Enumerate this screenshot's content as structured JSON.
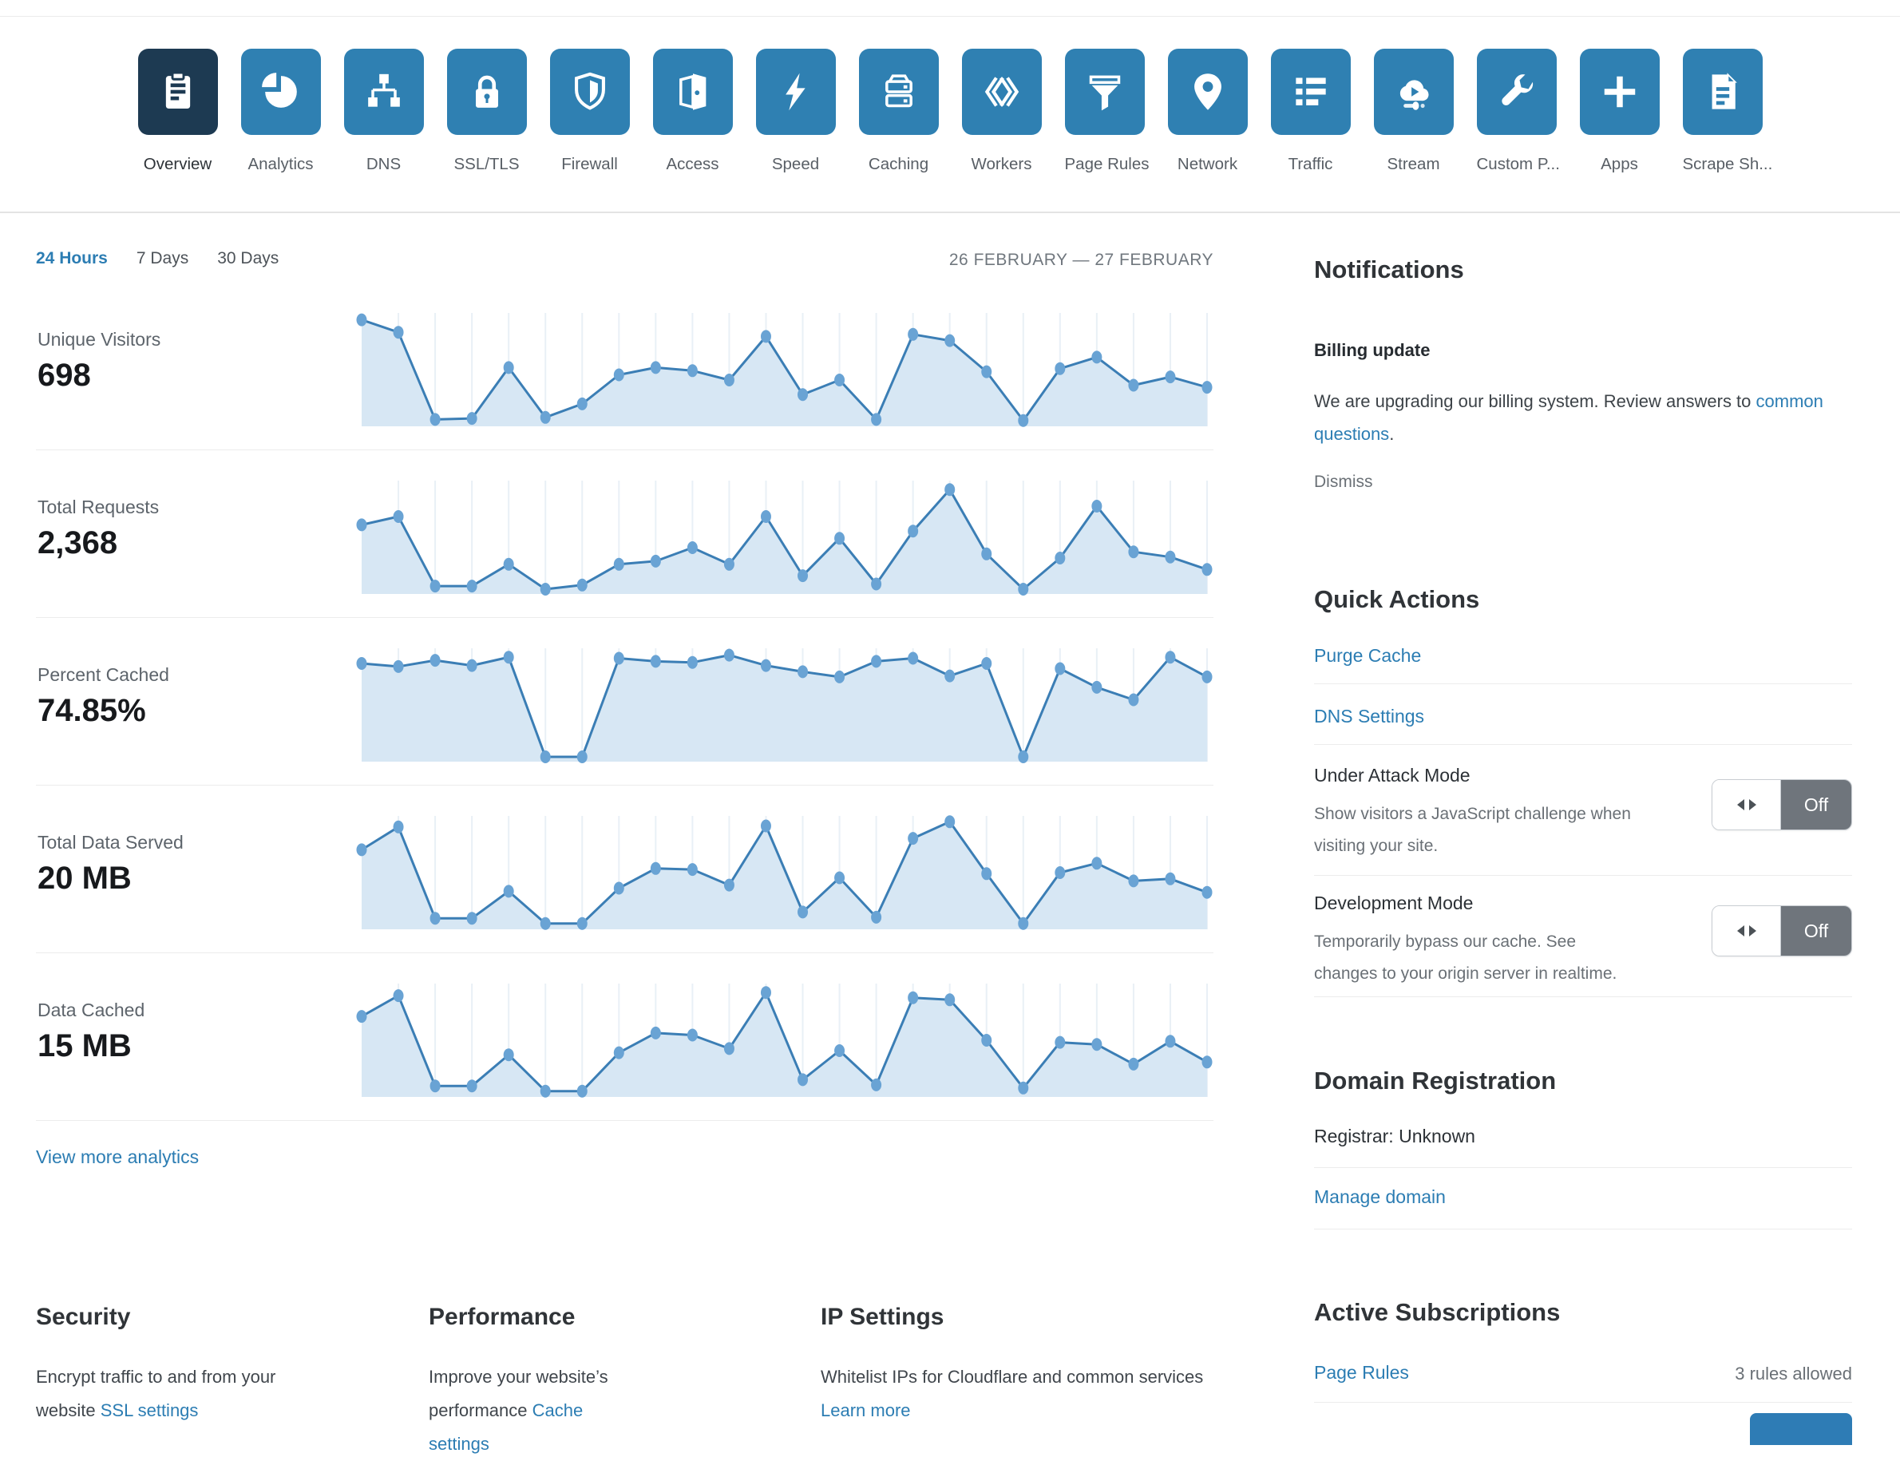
{
  "nav": {
    "items": [
      {
        "label": "Overview",
        "icon": "clipboard-icon",
        "active": true
      },
      {
        "label": "Analytics",
        "icon": "pie-chart-icon",
        "active": false
      },
      {
        "label": "DNS",
        "icon": "dns-tree-icon",
        "active": false
      },
      {
        "label": "SSL/TLS",
        "icon": "lock-icon",
        "active": false
      },
      {
        "label": "Firewall",
        "icon": "shield-icon",
        "active": false
      },
      {
        "label": "Access",
        "icon": "door-icon",
        "active": false
      },
      {
        "label": "Speed",
        "icon": "lightning-icon",
        "active": false
      },
      {
        "label": "Caching",
        "icon": "server-icon",
        "active": false
      },
      {
        "label": "Workers",
        "icon": "brackets-icon",
        "active": false
      },
      {
        "label": "Page Rules",
        "icon": "funnel-icon",
        "active": false
      },
      {
        "label": "Network",
        "icon": "map-pin-icon",
        "active": false
      },
      {
        "label": "Traffic",
        "icon": "list-icon",
        "active": false
      },
      {
        "label": "Stream",
        "icon": "stream-cloud-icon",
        "active": false
      },
      {
        "label": "Custom P...",
        "icon": "wrench-icon",
        "active": false
      },
      {
        "label": "Apps",
        "icon": "plus-icon",
        "active": false
      },
      {
        "label": "Scrape Sh...",
        "icon": "document-icon",
        "active": false
      }
    ]
  },
  "filters": {
    "options": [
      "24 Hours",
      "7 Days",
      "30 Days"
    ],
    "active": "24 Hours",
    "date_range": "26 FEBRUARY — 27 FEBRUARY"
  },
  "metrics": [
    {
      "label": "Unique Visitors",
      "value": "698"
    },
    {
      "label": "Total Requests",
      "value": "2,368"
    },
    {
      "label": "Percent Cached",
      "value": "74.85%"
    },
    {
      "label": "Total Data Served",
      "value": "20 MB"
    },
    {
      "label": "Data Cached",
      "value": "15 MB"
    }
  ],
  "chart_data": [
    {
      "type": "area",
      "title": "Unique Visitors",
      "x_label": "24 hours (26 February — 27 February)",
      "points_normalized_0_100": [
        98,
        86,
        2,
        3,
        52,
        4,
        17,
        45,
        52,
        49,
        40,
        82,
        26,
        40,
        2,
        84,
        78,
        48,
        1,
        51,
        62,
        35,
        43,
        33
      ]
    },
    {
      "type": "area",
      "title": "Total Requests",
      "x_label": "24 hours (26 February — 27 February)",
      "points_normalized_0_100": [
        62,
        70,
        3,
        3,
        24,
        0,
        4,
        24,
        27,
        40,
        24,
        70,
        13,
        49,
        5,
        56,
        96,
        34,
        0,
        30,
        80,
        36,
        31,
        19
      ]
    },
    {
      "type": "area",
      "title": "Percent Cached",
      "x_label": "24 hours (26 February — 27 February)",
      "points_normalized_0_100": [
        90,
        87,
        93,
        88,
        96,
        0,
        0,
        95,
        92,
        91,
        98,
        88,
        82,
        77,
        92,
        95,
        78,
        90,
        0,
        85,
        67,
        55,
        96,
        77
      ]
    },
    {
      "type": "area",
      "title": "Total Data Served",
      "x_label": "24 hours (26 February — 27 February)",
      "points_normalized_0_100": [
        72,
        94,
        6,
        6,
        32,
        1,
        1,
        35,
        54,
        53,
        38,
        95,
        12,
        45,
        7,
        83,
        99,
        49,
        1,
        50,
        59,
        42,
        44,
        31
      ]
    },
    {
      "type": "area",
      "title": "Data Cached",
      "x_label": "24 hours (26 February — 27 February)",
      "points_normalized_0_100": [
        73,
        93,
        6,
        6,
        36,
        1,
        1,
        38,
        57,
        55,
        42,
        96,
        12,
        40,
        7,
        91,
        89,
        50,
        4,
        48,
        46,
        27,
        49,
        29
      ]
    }
  ],
  "view_more": "View more analytics",
  "sections": [
    {
      "heading": "Security",
      "text": "Encrypt traffic to and from your website ",
      "link": "SSL settings"
    },
    {
      "heading": "Performance",
      "text": "Improve your website’s performance ",
      "link": "Cache settings"
    },
    {
      "heading": "IP Settings",
      "text": "Whitelist IPs for Cloudflare and common services ",
      "link": "Learn more"
    }
  ],
  "sidebar": {
    "notifications": {
      "heading": "Notifications",
      "title": "Billing update",
      "body_before": "We are upgrading our billing system. Review answers to ",
      "link": "common questions",
      "body_after": ".",
      "dismiss": "Dismiss"
    },
    "quick_actions": {
      "heading": "Quick Actions",
      "links": [
        "Purge Cache",
        "DNS Settings"
      ],
      "toggles": [
        {
          "title": "Under Attack Mode",
          "description": "Show visitors a JavaScript challenge when visiting your site.",
          "state": "Off"
        },
        {
          "title": "Development Mode",
          "description": "Temporarily bypass our cache. See changes to your origin server in realtime.",
          "state": "Off"
        }
      ]
    },
    "domain_registration": {
      "heading": "Domain Registration",
      "registrar": "Registrar: Unknown",
      "link": "Manage domain"
    },
    "active_subscriptions": {
      "heading": "Active Subscriptions",
      "item": "Page Rules",
      "allowance": "3 rules allowed"
    }
  },
  "colors": {
    "tile_blue": "#2f80b2",
    "tile_active": "#1d3a52",
    "link_blue": "#2c7db3",
    "chart_line": "#3b7eb5",
    "chart_fill": "#d7e7f4",
    "chart_dot": "#69a3d4",
    "chart_grid": "#e9f0f6",
    "toggle_off_gray": "#6f757c"
  }
}
